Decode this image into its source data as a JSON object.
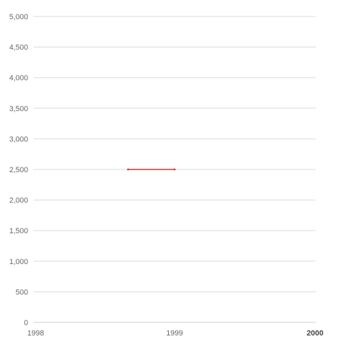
{
  "chart_data": {
    "type": "line",
    "title": "",
    "xlabel": "",
    "ylabel": "",
    "xlim": [
      1998,
      2000
    ],
    "ylim": [
      0,
      5000
    ],
    "grid": true,
    "legend": "none",
    "x_ticks": [
      "1998",
      "1999",
      "2000"
    ],
    "y_ticks": [
      "0",
      "500",
      "1,000",
      "1,500",
      "2,000",
      "2,500",
      "3,000",
      "3,500",
      "4,000",
      "4,500",
      "5,000"
    ],
    "series": [
      {
        "color": "#e0292b",
        "points": [
          {
            "x": 1998.67,
            "y": 2500
          },
          {
            "x": 1999.0,
            "y": 2500
          }
        ]
      }
    ]
  }
}
